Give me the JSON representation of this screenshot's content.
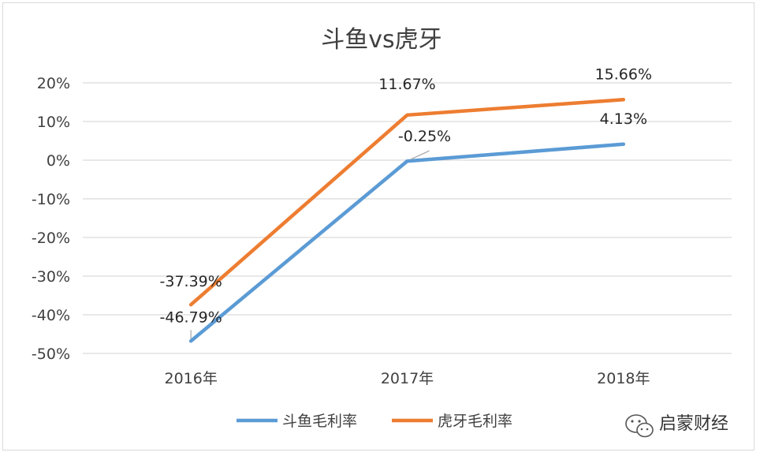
{
  "chart_data": {
    "type": "line",
    "title": "斗鱼vs虎牙",
    "categories": [
      "2016年",
      "2017年",
      "2018年"
    ],
    "ylim": [
      -50,
      20
    ],
    "yticks": [
      20,
      10,
      0,
      -10,
      -20,
      -30,
      -40,
      -50
    ],
    "ytick_labels": [
      "20%",
      "10%",
      "0%",
      "-10%",
      "-20%",
      "-30%",
      "-40%",
      "-50%"
    ],
    "grid": true,
    "legend_position": "bottom",
    "series": [
      {
        "name": "斗鱼毛利率",
        "color": "#5b9bd5",
        "values": [
          -46.79,
          -0.25,
          4.13
        ],
        "labels": [
          "-46.79%",
          "-0.25%",
          "4.13%"
        ]
      },
      {
        "name": "虎牙毛利率",
        "color": "#ed7d31",
        "values": [
          -37.39,
          11.67,
          15.66
        ],
        "labels": [
          "-37.39%",
          "11.67%",
          "15.66%"
        ]
      }
    ]
  },
  "watermark": {
    "text": "启蒙财经",
    "icon": "wechat-icon"
  }
}
